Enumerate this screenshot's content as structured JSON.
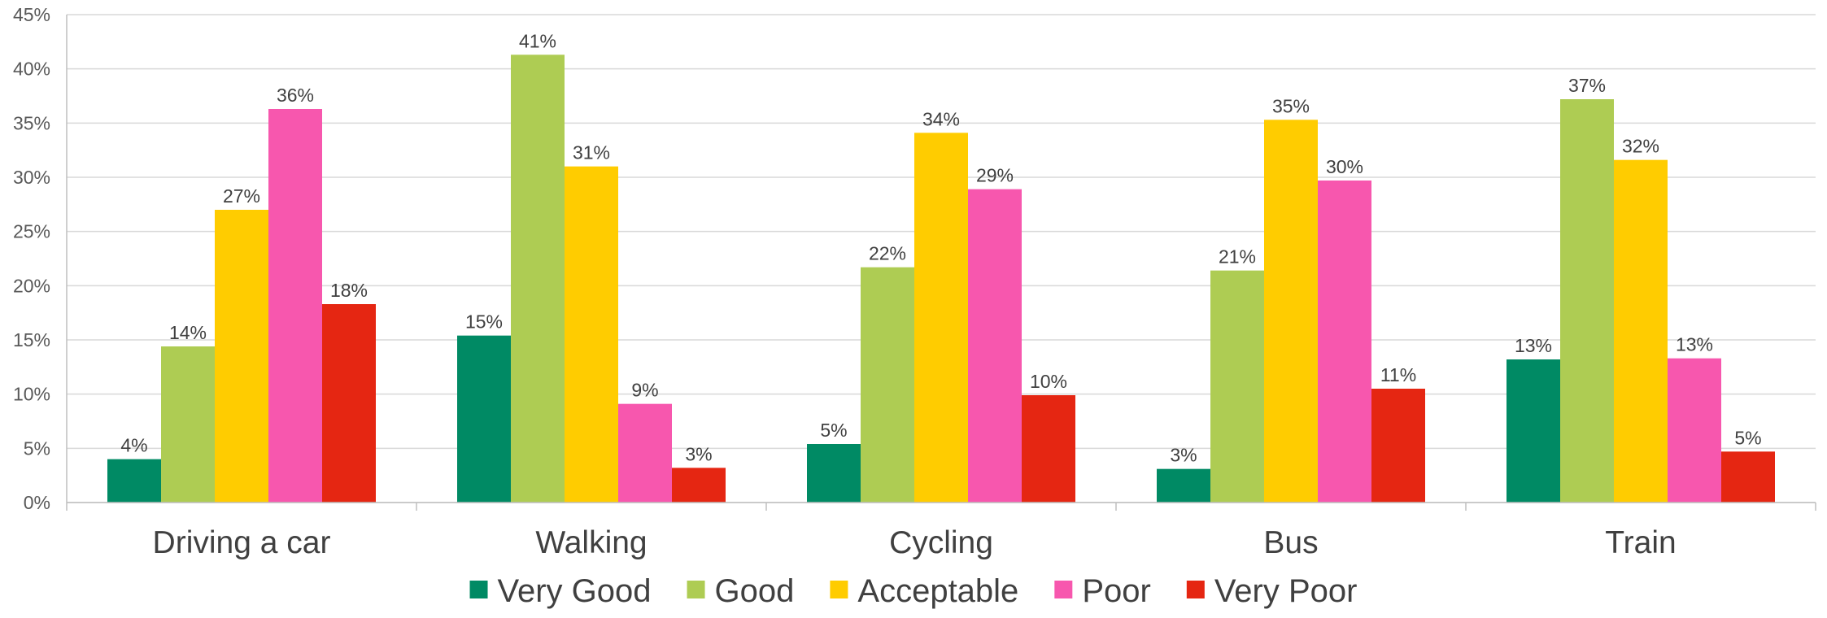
{
  "chart_data": {
    "type": "bar",
    "title": "",
    "xlabel": "",
    "ylabel": "",
    "ylim": [
      0,
      45
    ],
    "yticks": [
      0,
      5,
      10,
      15,
      20,
      25,
      30,
      35,
      40,
      45
    ],
    "ytick_suffix": "%",
    "grid": true,
    "legend_position": "bottom",
    "categories": [
      "Driving a car",
      "Walking",
      "Cycling",
      "Bus",
      "Train"
    ],
    "series": [
      {
        "name": "Very Good",
        "color": "#008A64",
        "values": [
          4,
          15.4,
          5.4,
          3.1,
          13.2
        ],
        "labels": [
          "4%",
          "15%",
          "5%",
          "3%",
          "13%"
        ]
      },
      {
        "name": "Good",
        "color": "#AECC53",
        "values": [
          14.4,
          41.3,
          21.7,
          21.4,
          37.2
        ],
        "labels": [
          "14%",
          "41%",
          "22%",
          "21%",
          "37%"
        ]
      },
      {
        "name": "Acceptable",
        "color": "#FFCC00",
        "values": [
          27,
          31,
          34.1,
          35.3,
          31.6
        ],
        "labels": [
          "27%",
          "31%",
          "34%",
          "35%",
          "32%"
        ]
      },
      {
        "name": "Poor",
        "color": "#F757AE",
        "values": [
          36.3,
          9.1,
          28.9,
          29.7,
          13.3
        ],
        "labels": [
          "36%",
          "9%",
          "29%",
          "30%",
          "13%"
        ]
      },
      {
        "name": "Very Poor",
        "color": "#E52612",
        "values": [
          18.3,
          3.2,
          9.9,
          10.5,
          4.7
        ],
        "labels": [
          "18%",
          "3%",
          "10%",
          "11%",
          "5%"
        ]
      }
    ]
  }
}
